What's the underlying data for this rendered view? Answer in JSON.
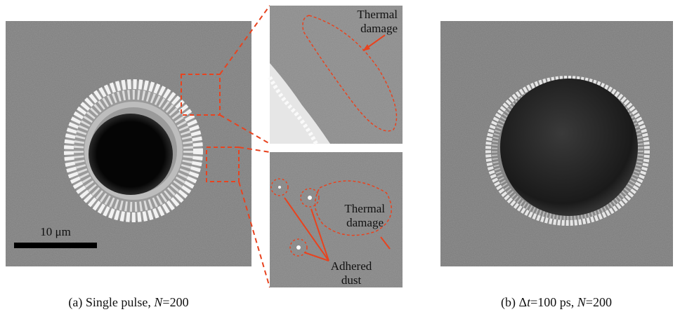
{
  "panel_a": {
    "scale_bar": "10 μm",
    "inset_top": {
      "label_lines": [
        "Thermal",
        "damage"
      ]
    },
    "inset_bottom": {
      "thermal_lines": [
        "Thermal",
        "damage"
      ],
      "dust_lines": [
        "Adhered",
        "dust"
      ]
    },
    "caption": [
      {
        "text": "(a) Single pulse, "
      },
      {
        "text": "N",
        "italic": true
      },
      {
        "text": "=200"
      }
    ]
  },
  "panel_b": {
    "caption": [
      {
        "text": "(b) Δ"
      },
      {
        "text": "t",
        "italic": true
      },
      {
        "text": "=100 ps, "
      },
      {
        "text": "N",
        "italic": true
      },
      {
        "text": "=200"
      }
    ]
  }
}
